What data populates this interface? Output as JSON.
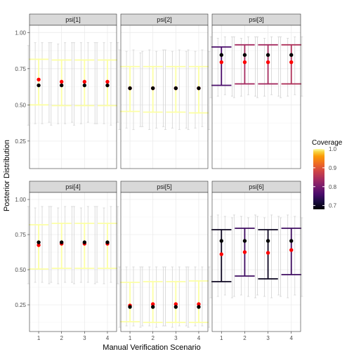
{
  "chart_data": {
    "type": "errorbar",
    "xlabel": "Manual Verification Scenario",
    "ylabel": "Posterior Distribution",
    "x_categories": [
      "1",
      "2",
      "3",
      "4"
    ],
    "ylim": [
      0.06,
      1.05
    ],
    "y_ticks": [
      0.25,
      0.5,
      0.75,
      1.0
    ],
    "y_tick_labels": [
      "0.25",
      "0.50",
      "0.75",
      "1.00"
    ],
    "grid": true,
    "legend": {
      "title": "Coverage",
      "position": "right",
      "scale": "inferno",
      "limits": [
        0.68,
        1.0
      ],
      "ticks": [
        0.7,
        0.8,
        0.9,
        1.0
      ],
      "tick_labels": [
        "0.7",
        "0.8",
        "0.9",
        "1.0"
      ]
    },
    "series_colors": {
      "truth": "#000000",
      "estimate": "#ff0000",
      "interval": "#d3d3d3"
    },
    "panels": [
      {
        "label": "psi[1]",
        "truth": [
          0.635,
          0.635,
          0.635,
          0.635
        ],
        "estimate": [
          0.675,
          0.66,
          0.66,
          0.66
        ],
        "interval_lo": [
          0.5,
          0.495,
          0.495,
          0.495
        ],
        "interval_hi": [
          0.815,
          0.81,
          0.81,
          0.81
        ],
        "coverage": [
          1.0,
          1.0,
          1.0,
          1.0
        ],
        "draws_lo": [
          0.36,
          0.37,
          0.37,
          0.38,
          0.36,
          0.37,
          0.37,
          0.38,
          0.36,
          0.37,
          0.38,
          0.37,
          0.37,
          0.37,
          0.36,
          0.38
        ],
        "draws_hi": [
          0.91,
          0.93,
          0.93,
          0.93,
          0.93,
          0.92,
          0.93,
          0.93,
          0.93,
          0.93,
          0.93,
          0.93,
          0.93,
          0.93,
          0.93,
          0.93
        ]
      },
      {
        "label": "psi[2]",
        "truth": [
          0.615,
          0.615,
          0.615,
          0.615
        ],
        "estimate": [
          0.615,
          0.615,
          0.615,
          0.615
        ],
        "interval_lo": [
          0.455,
          0.45,
          0.45,
          0.445
        ],
        "interval_hi": [
          0.765,
          0.765,
          0.765,
          0.765
        ],
        "coverage": [
          1.0,
          1.0,
          1.0,
          1.0
        ],
        "draws_lo": [
          0.33,
          0.34,
          0.33,
          0.35,
          0.35,
          0.33,
          0.34,
          0.35,
          0.33,
          0.34,
          0.33,
          0.34,
          0.33,
          0.34,
          0.35,
          0.33
        ],
        "draws_hi": [
          0.88,
          0.87,
          0.88,
          0.86,
          0.87,
          0.88,
          0.87,
          0.88,
          0.88,
          0.87,
          0.88,
          0.87,
          0.88,
          0.87,
          0.88,
          0.87
        ]
      },
      {
        "label": "psi[3]",
        "truth": [
          0.845,
          0.845,
          0.845,
          0.845
        ],
        "estimate": [
          0.795,
          0.795,
          0.795,
          0.795
        ],
        "interval_lo": [
          0.635,
          0.645,
          0.645,
          0.645
        ],
        "interval_hi": [
          0.9,
          0.915,
          0.915,
          0.915
        ],
        "coverage": [
          0.76,
          0.84,
          0.84,
          0.85
        ],
        "draws_lo": [
          0.55,
          0.56,
          0.57,
          0.56,
          0.55,
          0.56,
          0.57,
          0.56,
          0.55,
          0.56,
          0.57,
          0.56,
          0.55,
          0.56,
          0.57,
          0.56
        ],
        "draws_hi": [
          0.97,
          0.96,
          0.97,
          0.97,
          0.97,
          0.96,
          0.97,
          0.97,
          0.97,
          0.96,
          0.97,
          0.97,
          0.97,
          0.96,
          0.97,
          0.97
        ]
      },
      {
        "label": "psi[4]",
        "truth": [
          0.695,
          0.695,
          0.695,
          0.695
        ],
        "estimate": [
          0.675,
          0.685,
          0.685,
          0.685
        ],
        "interval_lo": [
          0.505,
          0.51,
          0.51,
          0.51
        ],
        "interval_hi": [
          0.82,
          0.83,
          0.83,
          0.83
        ],
        "coverage": [
          1.0,
          1.0,
          1.0,
          1.0
        ],
        "draws_lo": [
          0.4,
          0.41,
          0.41,
          0.4,
          0.41,
          0.4,
          0.41,
          0.41,
          0.4,
          0.41,
          0.41,
          0.4,
          0.41,
          0.4,
          0.41,
          0.4
        ],
        "draws_hi": [
          0.95,
          0.94,
          0.95,
          0.95,
          0.95,
          0.94,
          0.95,
          0.95,
          0.95,
          0.94,
          0.95,
          0.95,
          0.95,
          0.94,
          0.95,
          0.95
        ]
      },
      {
        "label": "psi[5]",
        "truth": [
          0.235,
          0.235,
          0.235,
          0.235
        ],
        "estimate": [
          0.245,
          0.255,
          0.255,
          0.255
        ],
        "interval_lo": [
          0.13,
          0.125,
          0.125,
          0.125
        ],
        "interval_hi": [
          0.41,
          0.415,
          0.415,
          0.42
        ],
        "coverage": [
          1.0,
          1.0,
          1.0,
          1.0
        ],
        "draws_lo": [
          0.09,
          0.1,
          0.1,
          0.09,
          0.1,
          0.1,
          0.09,
          0.1,
          0.1,
          0.09,
          0.1,
          0.1,
          0.09,
          0.1,
          0.1,
          0.09
        ],
        "draws_hi": [
          0.52,
          0.52,
          0.52,
          0.52,
          0.52,
          0.52,
          0.52,
          0.52,
          0.52,
          0.52,
          0.52,
          0.52,
          0.52,
          0.52,
          0.52,
          0.52
        ]
      },
      {
        "label": "psi[6]",
        "truth": [
          0.705,
          0.705,
          0.705,
          0.705
        ],
        "estimate": [
          0.61,
          0.625,
          0.62,
          0.64
        ],
        "interval_lo": [
          0.415,
          0.455,
          0.435,
          0.465
        ],
        "interval_hi": [
          0.785,
          0.795,
          0.785,
          0.795
        ],
        "coverage": [
          0.7,
          0.75,
          0.7,
          0.75
        ],
        "draws_lo": [
          0.3,
          0.31,
          0.32,
          0.3,
          0.31,
          0.32,
          0.31,
          0.3,
          0.32,
          0.31,
          0.3,
          0.32,
          0.31,
          0.3,
          0.32,
          0.31
        ],
        "draws_hi": [
          0.88,
          0.89,
          0.88,
          0.87,
          0.89,
          0.88,
          0.87,
          0.89,
          0.88,
          0.87,
          0.89,
          0.88,
          0.87,
          0.89,
          0.88,
          0.87
        ]
      }
    ]
  }
}
